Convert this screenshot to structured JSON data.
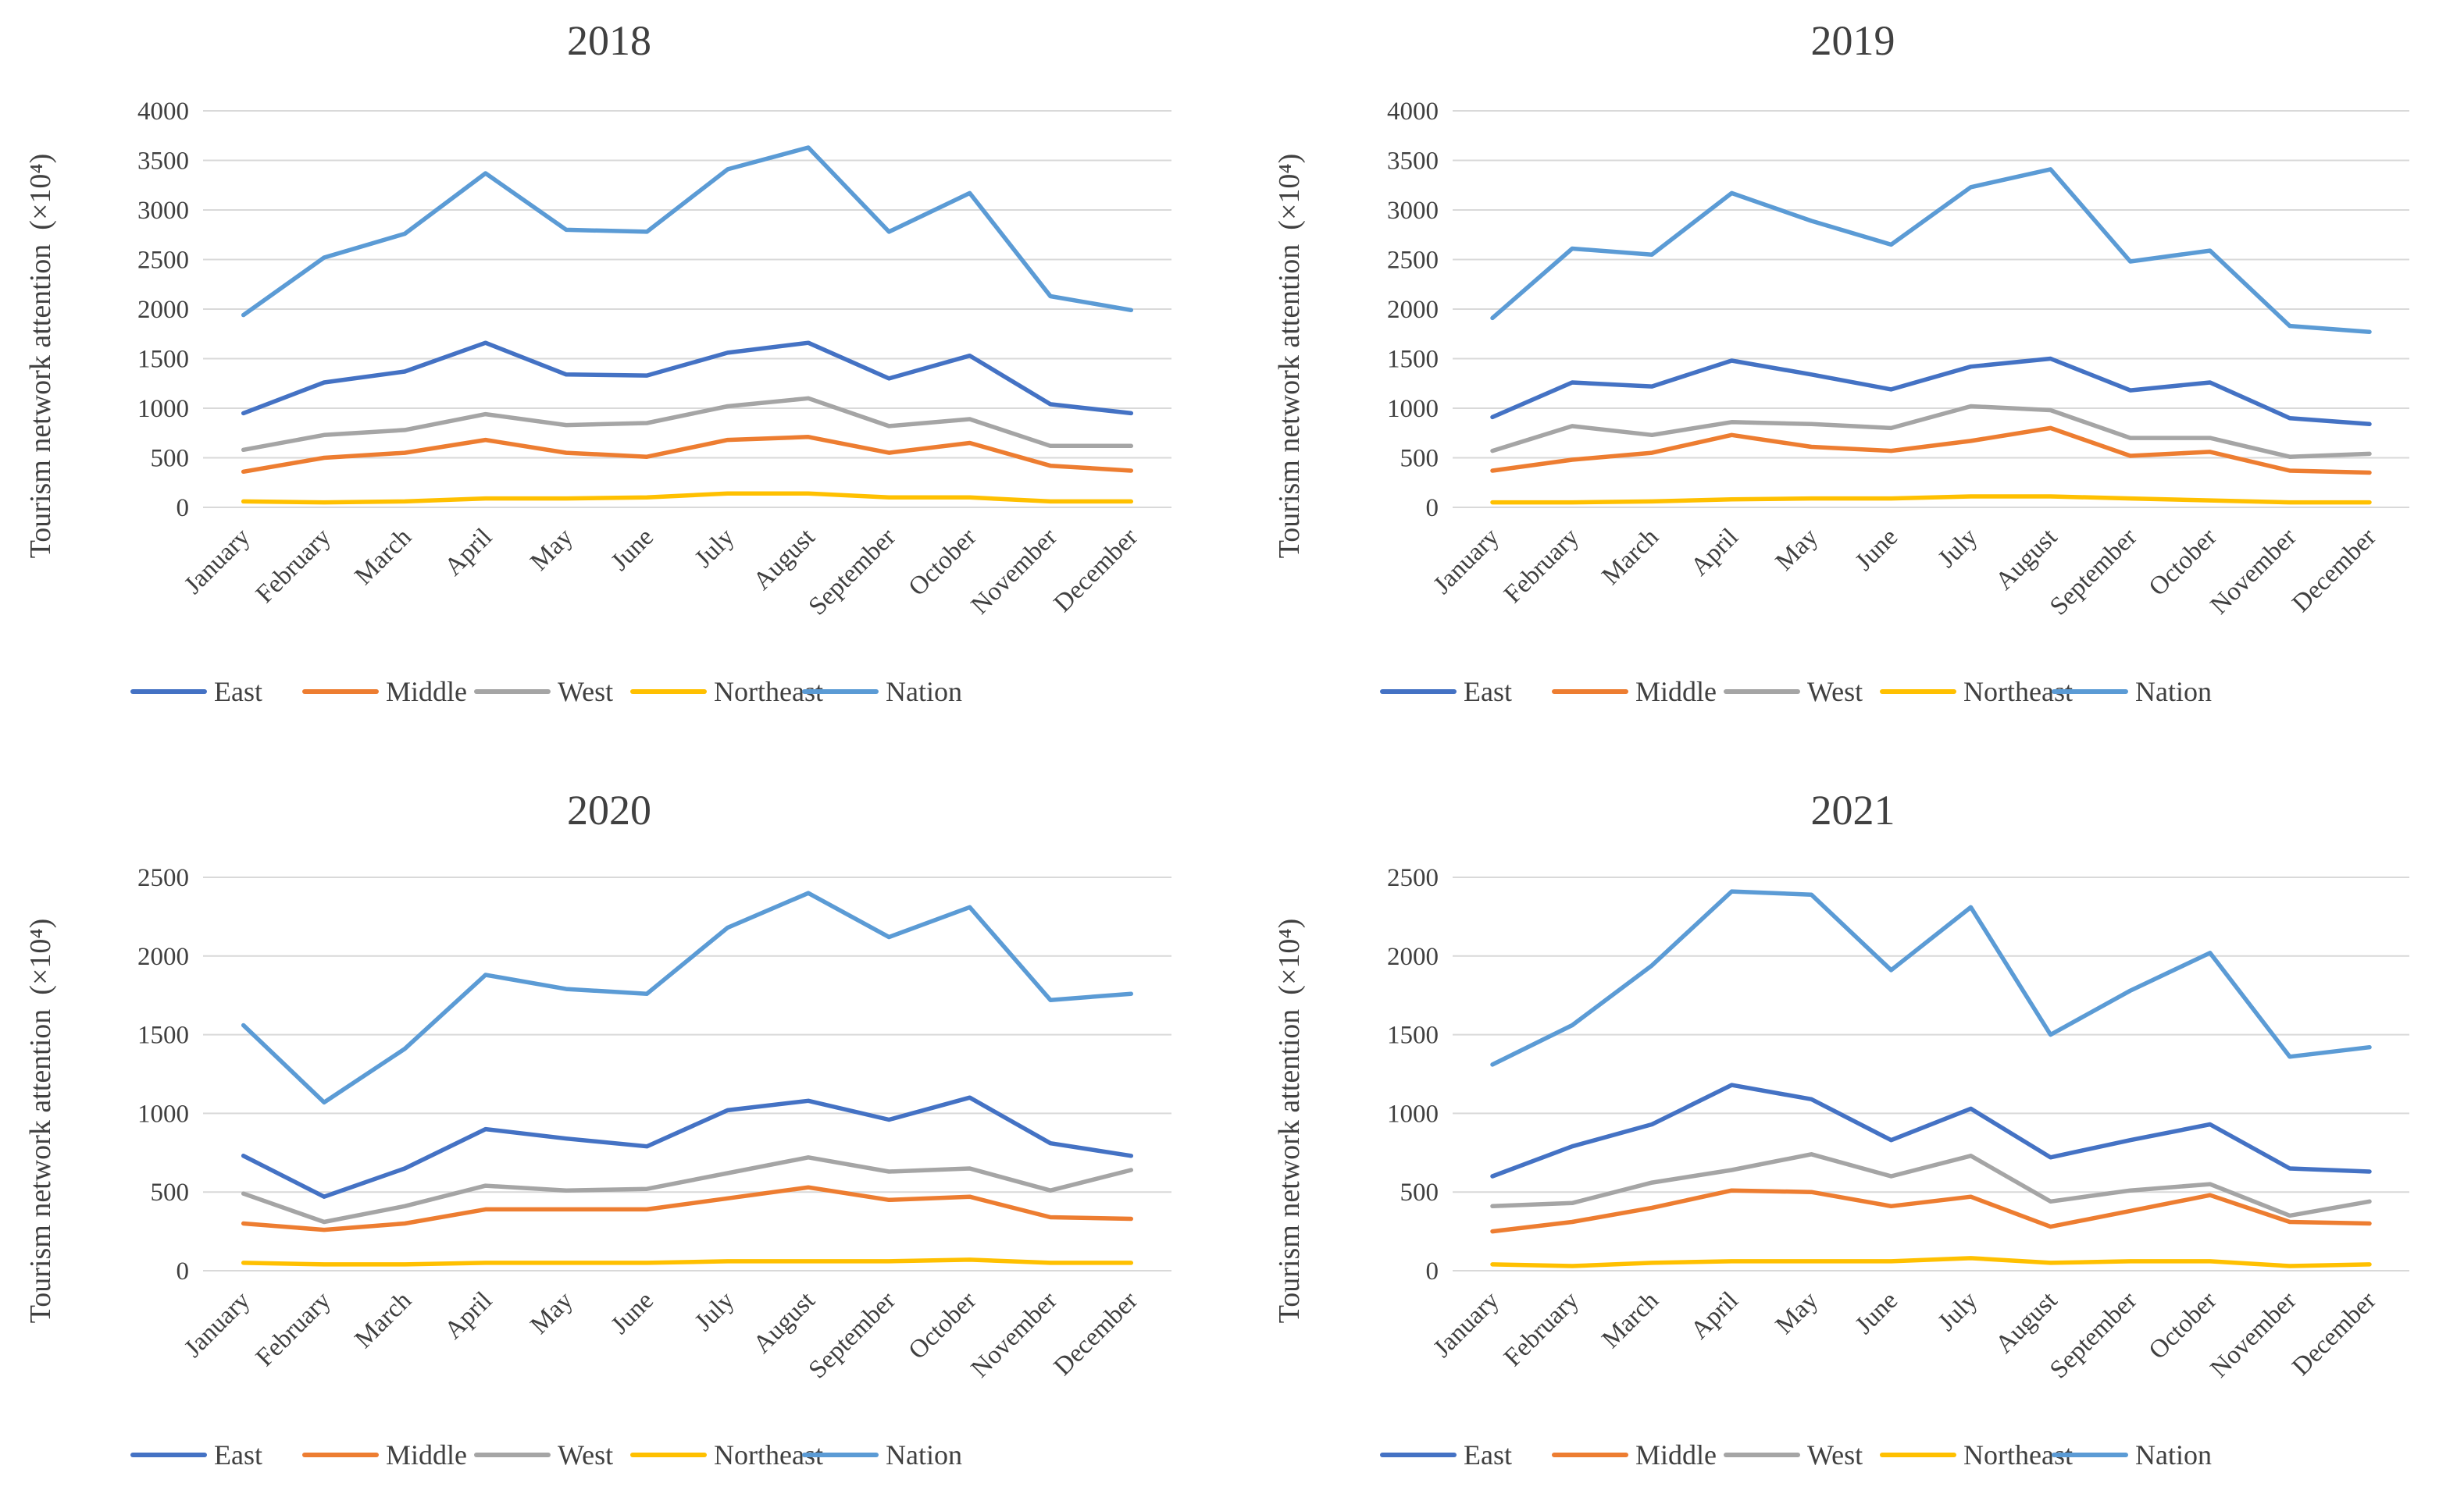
{
  "figure": {
    "colors": {
      "East": "#4472c4",
      "Middle": "#ed7d31",
      "West": "#a5a5a5",
      "Northeast": "#ffc000",
      "Nation": "#5b9bd5"
    },
    "legend_items": [
      "East",
      "Middle",
      "West",
      "Northeast",
      "Nation"
    ]
  },
  "chart_data": [
    {
      "type": "line",
      "title": "2018",
      "ylabel": "Tourism network attention",
      "ylabel_unit": "(×10⁴)",
      "ylim": [
        0,
        4000
      ],
      "yticks": [
        0,
        500,
        1000,
        1500,
        2000,
        2500,
        3000,
        3500,
        4000
      ],
      "categories": [
        "January",
        "February",
        "March",
        "April",
        "May",
        "June",
        "July",
        "August",
        "September",
        "October",
        "November",
        "December"
      ],
      "series": [
        {
          "name": "East",
          "values": [
            950,
            1260,
            1370,
            1660,
            1340,
            1330,
            1560,
            1660,
            1300,
            1530,
            1040,
            950
          ]
        },
        {
          "name": "Middle",
          "values": [
            360,
            500,
            550,
            680,
            550,
            510,
            680,
            710,
            550,
            650,
            420,
            370
          ]
        },
        {
          "name": "West",
          "values": [
            580,
            730,
            780,
            940,
            830,
            850,
            1020,
            1100,
            820,
            890,
            620,
            620
          ]
        },
        {
          "name": "Northeast",
          "values": [
            60,
            50,
            60,
            90,
            90,
            100,
            140,
            140,
            100,
            100,
            60,
            60
          ]
        },
        {
          "name": "Nation",
          "values": [
            1940,
            2520,
            2760,
            3370,
            2800,
            2780,
            3410,
            3630,
            2780,
            3170,
            2130,
            1990
          ]
        }
      ]
    },
    {
      "type": "line",
      "title": "2019",
      "ylabel": "Tourism network attention",
      "ylabel_unit": "(×10⁴)",
      "ylim": [
        0,
        4000
      ],
      "yticks": [
        0,
        500,
        1000,
        1500,
        2000,
        2500,
        3000,
        3500,
        4000
      ],
      "categories": [
        "January",
        "February",
        "March",
        "April",
        "May",
        "June",
        "July",
        "August",
        "September",
        "October",
        "November",
        "December"
      ],
      "series": [
        {
          "name": "East",
          "values": [
            910,
            1260,
            1220,
            1480,
            1340,
            1190,
            1420,
            1500,
            1180,
            1260,
            900,
            840
          ]
        },
        {
          "name": "Middle",
          "values": [
            370,
            480,
            550,
            730,
            610,
            570,
            670,
            800,
            520,
            560,
            370,
            350
          ]
        },
        {
          "name": "West",
          "values": [
            570,
            820,
            730,
            860,
            840,
            800,
            1020,
            980,
            700,
            700,
            510,
            540
          ]
        },
        {
          "name": "Northeast",
          "values": [
            50,
            50,
            60,
            80,
            90,
            90,
            110,
            110,
            90,
            70,
            50,
            50
          ]
        },
        {
          "name": "Nation",
          "values": [
            1910,
            2610,
            2550,
            3170,
            2890,
            2650,
            3230,
            3410,
            2480,
            2590,
            1830,
            1770
          ]
        }
      ]
    },
    {
      "type": "line",
      "title": "2020",
      "ylabel": "Tourism network attention",
      "ylabel_unit": "(×10⁴)",
      "ylim": [
        0,
        2500
      ],
      "yticks": [
        0,
        500,
        1000,
        1500,
        2000,
        2500
      ],
      "categories": [
        "January",
        "February",
        "March",
        "April",
        "May",
        "June",
        "July",
        "August",
        "September",
        "October",
        "November",
        "December"
      ],
      "series": [
        {
          "name": "East",
          "values": [
            730,
            470,
            650,
            900,
            840,
            790,
            1020,
            1080,
            960,
            1100,
            810,
            730
          ]
        },
        {
          "name": "Middle",
          "values": [
            300,
            260,
            300,
            390,
            390,
            390,
            460,
            530,
            450,
            470,
            340,
            330
          ]
        },
        {
          "name": "West",
          "values": [
            490,
            310,
            410,
            540,
            510,
            520,
            620,
            720,
            630,
            650,
            510,
            640
          ]
        },
        {
          "name": "Northeast",
          "values": [
            50,
            40,
            40,
            50,
            50,
            50,
            60,
            60,
            60,
            70,
            50,
            50
          ]
        },
        {
          "name": "Nation",
          "values": [
            1560,
            1070,
            1410,
            1880,
            1790,
            1760,
            2180,
            2400,
            2120,
            2310,
            1720,
            1760
          ]
        }
      ]
    },
    {
      "type": "line",
      "title": "2021",
      "ylabel": "Tourism network attention",
      "ylabel_unit": "(×10⁴)",
      "ylim": [
        0,
        2500
      ],
      "yticks": [
        0,
        500,
        1000,
        1500,
        2000,
        2500
      ],
      "categories": [
        "January",
        "February",
        "March",
        "April",
        "May",
        "June",
        "July",
        "August",
        "September",
        "October",
        "November",
        "December"
      ],
      "series": [
        {
          "name": "East",
          "values": [
            600,
            790,
            930,
            1180,
            1090,
            830,
            1030,
            720,
            830,
            930,
            650,
            630
          ]
        },
        {
          "name": "Middle",
          "values": [
            250,
            310,
            400,
            510,
            500,
            410,
            470,
            280,
            380,
            480,
            310,
            300
          ]
        },
        {
          "name": "West",
          "values": [
            410,
            430,
            560,
            640,
            740,
            600,
            730,
            440,
            510,
            550,
            350,
            440
          ]
        },
        {
          "name": "Northeast",
          "values": [
            40,
            30,
            50,
            60,
            60,
            60,
            80,
            50,
            60,
            60,
            30,
            40
          ]
        },
        {
          "name": "Nation",
          "values": [
            1310,
            1560,
            1940,
            2410,
            2390,
            1910,
            2310,
            1500,
            1780,
            2020,
            1360,
            1420
          ]
        }
      ]
    }
  ]
}
